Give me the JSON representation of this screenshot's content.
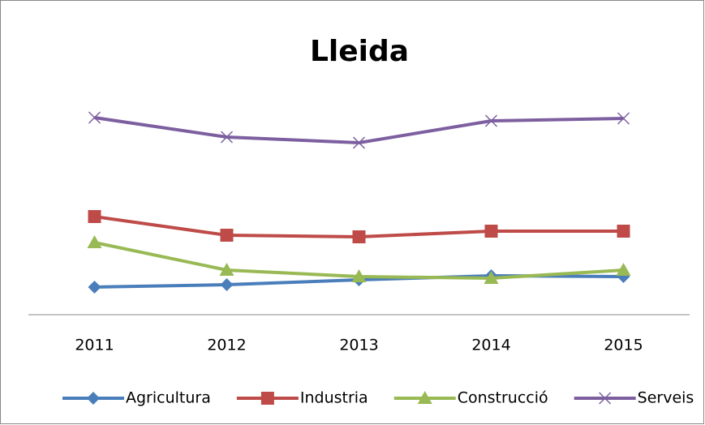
{
  "chart_data": {
    "type": "line",
    "title": "Lleida",
    "categories": [
      "2011",
      "2012",
      "2013",
      "2014",
      "2015"
    ],
    "series": [
      {
        "name": "Agricultura",
        "color": "#4a7ebb",
        "marker": "diamond",
        "values": [
          34,
          37,
          43,
          48,
          47
        ]
      },
      {
        "name": "Industria",
        "color": "#be4b48",
        "marker": "square",
        "values": [
          121,
          98,
          96,
          103,
          103
        ]
      },
      {
        "name": "Construcció",
        "color": "#98b954",
        "marker": "triangle",
        "values": [
          89,
          55,
          47,
          45,
          55
        ]
      },
      {
        "name": "Serveis",
        "color": "#7d5fa0",
        "marker": "x",
        "values": [
          243,
          219,
          212,
          239,
          242
        ]
      }
    ],
    "ylim": [
      0,
      350
    ],
    "grid": false,
    "legend": "bottom"
  }
}
